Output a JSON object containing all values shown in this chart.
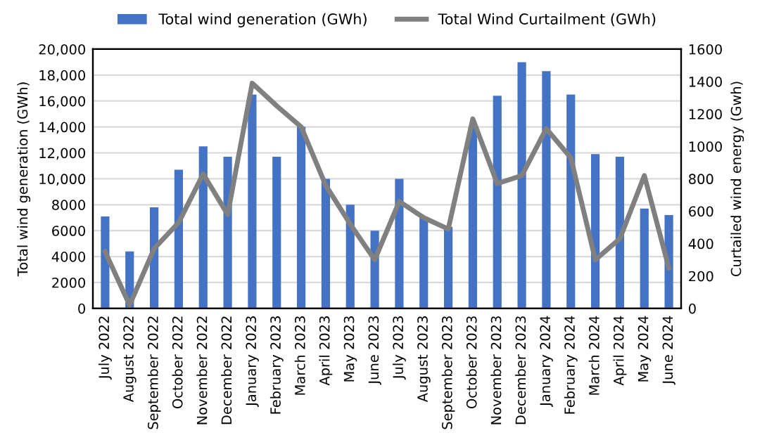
{
  "chart_data": {
    "type": "bar",
    "categories": [
      "July 2022",
      "August 2022",
      "September 2022",
      "October 2022",
      "November 2022",
      "December 2022",
      "January 2023",
      "February 2023",
      "March 2023",
      "April 2023",
      "May 2023",
      "June 2023",
      "July 2023",
      "August 2023",
      "September 2023",
      "October 2023",
      "November 2023",
      "December 2023",
      "January 2024",
      "February 2024",
      "March 2024",
      "April 2024",
      "May 2024",
      "June 2024"
    ],
    "series": [
      {
        "name": "Total wind generation (GWh)",
        "color": "#4472c4",
        "values": [
          7100,
          4400,
          7800,
          10700,
          12500,
          11700,
          16500,
          11700,
          14000,
          10000,
          8000,
          6000,
          10000,
          7000,
          6300,
          14000,
          16400,
          19000,
          18300,
          16500,
          11900,
          11700,
          7700,
          7200
        ]
      },
      {
        "name": "Total Wind Curtailment (GWh)",
        "color": "#808080",
        "type": "line",
        "axis": "y2",
        "values": [
          350,
          20,
          370,
          530,
          830,
          580,
          1390,
          1250,
          1120,
          760,
          520,
          300,
          660,
          560,
          490,
          1170,
          770,
          820,
          1110,
          930,
          300,
          430,
          820,
          250
        ]
      }
    ],
    "ylabel": "Total wind generation (GWh)",
    "y2label": "Curtailed wind energy (Gwh)",
    "ylim": [
      0,
      20000
    ],
    "yticks": [
      {
        "value": 0,
        "label": "0"
      },
      {
        "value": 2000,
        "label": "2000"
      },
      {
        "value": 4000,
        "label": "4000"
      },
      {
        "value": 6000,
        "label": "6000"
      },
      {
        "value": 8000,
        "label": "8000"
      },
      {
        "value": 10000,
        "label": "10,000"
      },
      {
        "value": 12000,
        "label": "12,000"
      },
      {
        "value": 14000,
        "label": "14,000"
      },
      {
        "value": 16000,
        "label": "16,000"
      },
      {
        "value": 18000,
        "label": "18,000"
      },
      {
        "value": 20000,
        "label": "20,000"
      }
    ],
    "y2lim": [
      0,
      1600
    ],
    "y2ticks": [
      0,
      200,
      400,
      600,
      800,
      1000,
      1200,
      1400,
      1600
    ],
    "grid": "y",
    "legend": "top",
    "marker": "none",
    "line_style": "solid"
  }
}
